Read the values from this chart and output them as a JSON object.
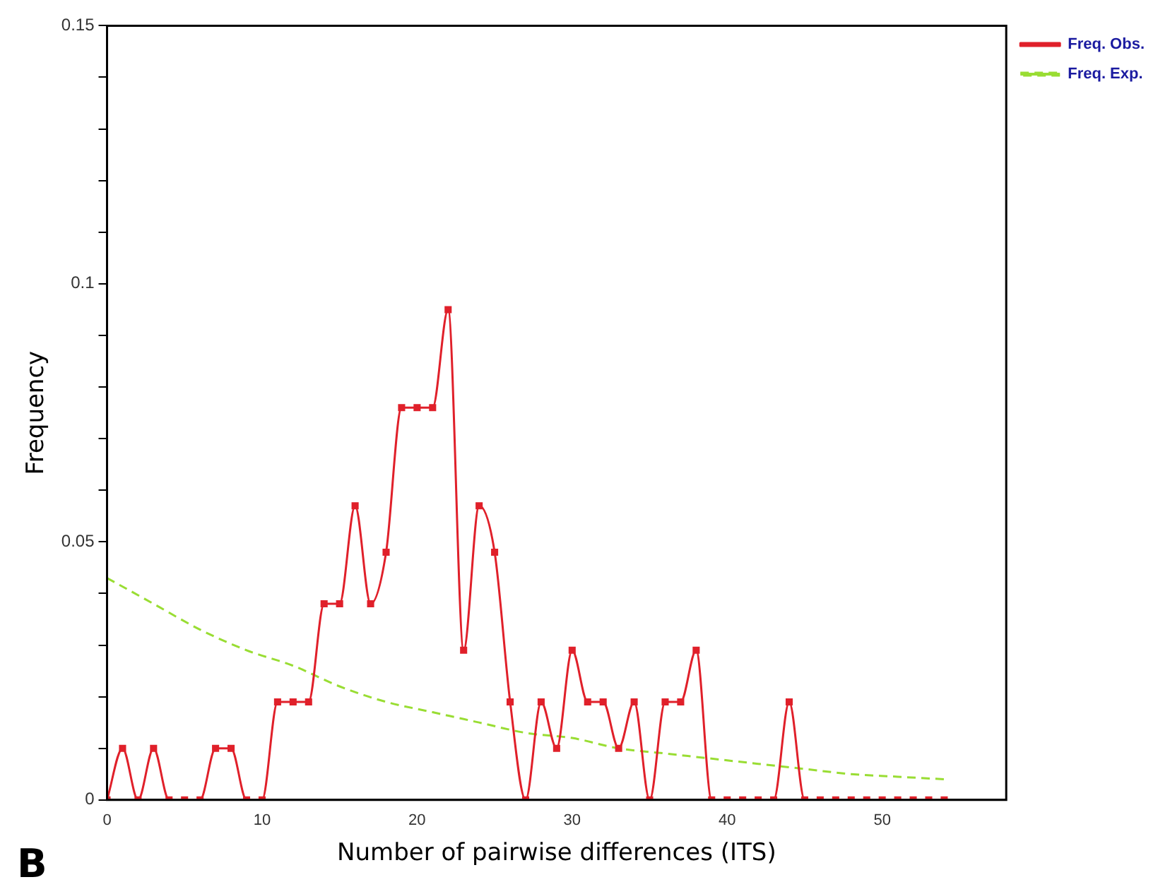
{
  "chart_data": {
    "type": "line",
    "xlabel": "Number of pairwise differences (ITS)",
    "ylabel": "Frequency",
    "xlim": [
      0,
      58
    ],
    "xticks": [
      0,
      10,
      20,
      30,
      40,
      50
    ],
    "ylim": [
      0,
      0.15
    ],
    "yticks": [
      0,
      {
        "value": 0.01,
        "label": null
      },
      {
        "value": 0.02,
        "label": null
      },
      {
        "value": 0.03,
        "label": null
      },
      {
        "value": 0.04,
        "label": null
      },
      0.05,
      {
        "value": 0.06,
        "label": null
      },
      {
        "value": 0.07,
        "label": null
      },
      {
        "value": 0.08,
        "label": null
      },
      {
        "value": 0.09,
        "label": null
      },
      0.1,
      {
        "value": 0.11,
        "label": null
      },
      {
        "value": 0.12,
        "label": null
      },
      {
        "value": 0.13,
        "label": null
      },
      {
        "value": 0.14,
        "label": null
      },
      0.15
    ],
    "grid": false,
    "legend": "top right",
    "annotations": [
      "B"
    ],
    "series": [
      {
        "name": "Freq. Obs.",
        "color": "#e0202a",
        "marker": "square",
        "line_style": "solid",
        "x": [
          0,
          1,
          2,
          3,
          4,
          5,
          6,
          7,
          8,
          9,
          10,
          11,
          12,
          13,
          14,
          15,
          16,
          17,
          18,
          19,
          20,
          21,
          22,
          23,
          24,
          25,
          26,
          27,
          28,
          29,
          30,
          31,
          32,
          33,
          34,
          35,
          36,
          37,
          38,
          39,
          40,
          41,
          42,
          43,
          44,
          45,
          46,
          47,
          48,
          49,
          50,
          51,
          52,
          53,
          54
        ],
        "values": [
          0,
          0.01,
          0,
          0.01,
          0,
          0,
          0,
          0.01,
          0.01,
          0,
          0,
          0.019,
          0.019,
          0.019,
          0.038,
          0.038,
          0.057,
          0.038,
          0.048,
          0.076,
          0.076,
          0.076,
          0.095,
          0.029,
          0.057,
          0.048,
          0.019,
          0,
          0.019,
          0.01,
          0.029,
          0.019,
          0.019,
          0.01,
          0.019,
          0,
          0.019,
          0.019,
          0.029,
          0,
          0,
          0,
          0,
          0,
          0.019,
          0,
          0,
          0,
          0,
          0,
          0,
          0,
          0,
          0,
          0
        ]
      },
      {
        "name": "Freq. Exp.",
        "color": "#99dd33",
        "marker": "none",
        "line_style": "dashed",
        "x": [
          0,
          3,
          6,
          9,
          12,
          15,
          18,
          21,
          24,
          27,
          30,
          33,
          36,
          39,
          42,
          45,
          48,
          51,
          54
        ],
        "values": [
          0.043,
          0.038,
          0.033,
          0.029,
          0.026,
          0.022,
          0.019,
          0.017,
          0.015,
          0.013,
          0.012,
          0.01,
          0.009,
          0.008,
          0.007,
          0.006,
          0.005,
          0.0045,
          0.004
        ]
      }
    ]
  }
}
